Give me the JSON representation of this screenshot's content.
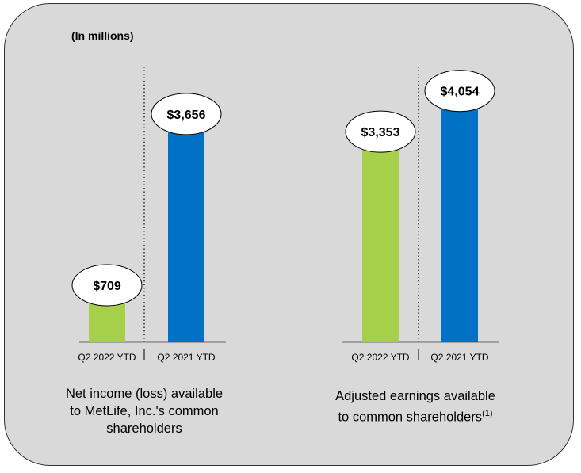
{
  "colors": {
    "panel_bg": "#d9d9d9",
    "green": "#a7d04a",
    "blue": "#0072c6"
  },
  "unit_label": "(In millions)",
  "chart_data": [
    {
      "type": "bar",
      "title": "Net income (loss) available to MetLife, Inc.'s common shareholders",
      "title_lines": [
        "Net income (loss) available",
        "to MetLife, Inc.'s common",
        "shareholders"
      ],
      "categories": [
        "Q2 2022 YTD",
        "Q2 2021 YTD"
      ],
      "values": [
        709,
        3656
      ],
      "labels": [
        "$709",
        "$3,656"
      ],
      "ylim": [
        0,
        4500
      ],
      "xlabel": "",
      "ylabel": ""
    },
    {
      "type": "bar",
      "title": "Adjusted earnings available to common shareholders(1)",
      "title_lines": [
        "Adjusted earnings available",
        "to common shareholders"
      ],
      "footnote_marker": "(1)",
      "categories": [
        "Q2 2022 YTD",
        "Q2 2021 YTD"
      ],
      "values": [
        3353,
        4054
      ],
      "labels": [
        "$3,353",
        "$4,054"
      ],
      "ylim": [
        0,
        4500
      ],
      "xlabel": "",
      "ylabel": ""
    }
  ]
}
